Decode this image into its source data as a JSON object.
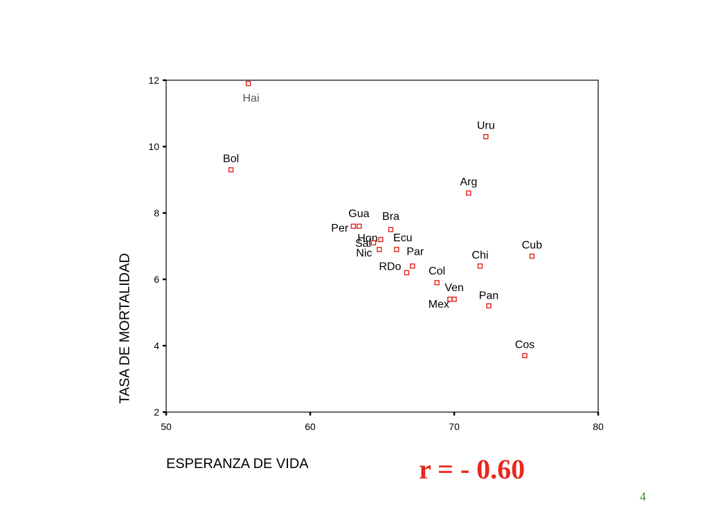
{
  "chart_data": {
    "type": "scatter",
    "title": "",
    "xlabel": "ESPERANZA DE VIDA",
    "ylabel": "TASA DE MORTALIDAD",
    "xlim": [
      50,
      80
    ],
    "ylim": [
      2,
      12
    ],
    "xticks": [
      "50",
      "60",
      "70",
      "80"
    ],
    "yticks": [
      "2",
      "4",
      "6",
      "8",
      "10",
      "12"
    ],
    "grid": false,
    "marker_color": "#e0201a",
    "points": [
      {
        "label": "Hai",
        "x": 55.7,
        "y": 11.9
      },
      {
        "label": "Uru",
        "x": 72.2,
        "y": 10.3
      },
      {
        "label": "Bol",
        "x": 54.5,
        "y": 9.3
      },
      {
        "label": "Arg",
        "x": 71.0,
        "y": 8.6
      },
      {
        "label": "Gua",
        "x": 63.0,
        "y": 7.6
      },
      {
        "label": "Per",
        "x": 63.4,
        "y": 7.6
      },
      {
        "label": "Bra",
        "x": 65.6,
        "y": 7.5
      },
      {
        "label": "Hon",
        "x": 64.9,
        "y": 7.2
      },
      {
        "label": "Sal",
        "x": 64.4,
        "y": 7.1
      },
      {
        "label": "Ecu",
        "x": 66.0,
        "y": 6.9
      },
      {
        "label": "Nic",
        "x": 64.8,
        "y": 6.9
      },
      {
        "label": "Cub",
        "x": 75.4,
        "y": 6.7
      },
      {
        "label": "Par",
        "x": 67.1,
        "y": 6.4
      },
      {
        "label": "Chi",
        "x": 71.8,
        "y": 6.4
      },
      {
        "label": "RDo",
        "x": 66.7,
        "y": 6.2
      },
      {
        "label": "Col",
        "x": 68.8,
        "y": 5.9
      },
      {
        "label": "Mex",
        "x": 69.7,
        "y": 5.4
      },
      {
        "label": "Ven",
        "x": 70.0,
        "y": 5.4
      },
      {
        "label": "Pan",
        "x": 72.4,
        "y": 5.2
      },
      {
        "label": "Cos",
        "x": 74.9,
        "y": 3.7
      }
    ]
  },
  "annotation": {
    "correlation": "r = - 0.60",
    "correlation_color": "#e8281e"
  },
  "slide": {
    "number": "4"
  }
}
